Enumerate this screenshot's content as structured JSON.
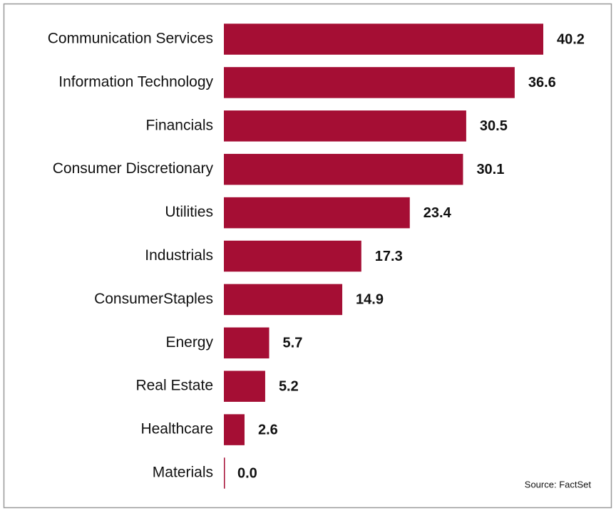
{
  "chart_data": {
    "type": "bar",
    "orientation": "horizontal",
    "categories": [
      "Communication Services",
      "Information Technology",
      "Financials",
      "Consumer Discretionary",
      "Utilities",
      "Industrials",
      "ConsumerStaples",
      "Energy",
      "Real Estate",
      "Healthcare",
      "Materials"
    ],
    "values": [
      40.2,
      36.6,
      30.5,
      30.1,
      23.4,
      17.3,
      14.9,
      5.7,
      5.2,
      2.6,
      0
    ],
    "value_labels": [
      "40.2",
      "36.6",
      "30.5",
      "30.1",
      "23.4",
      "17.3",
      "14.9",
      "5.7",
      "5.2",
      "2.6",
      "0.0"
    ],
    "color": "#a50e34",
    "source": "Source: FactSet"
  }
}
